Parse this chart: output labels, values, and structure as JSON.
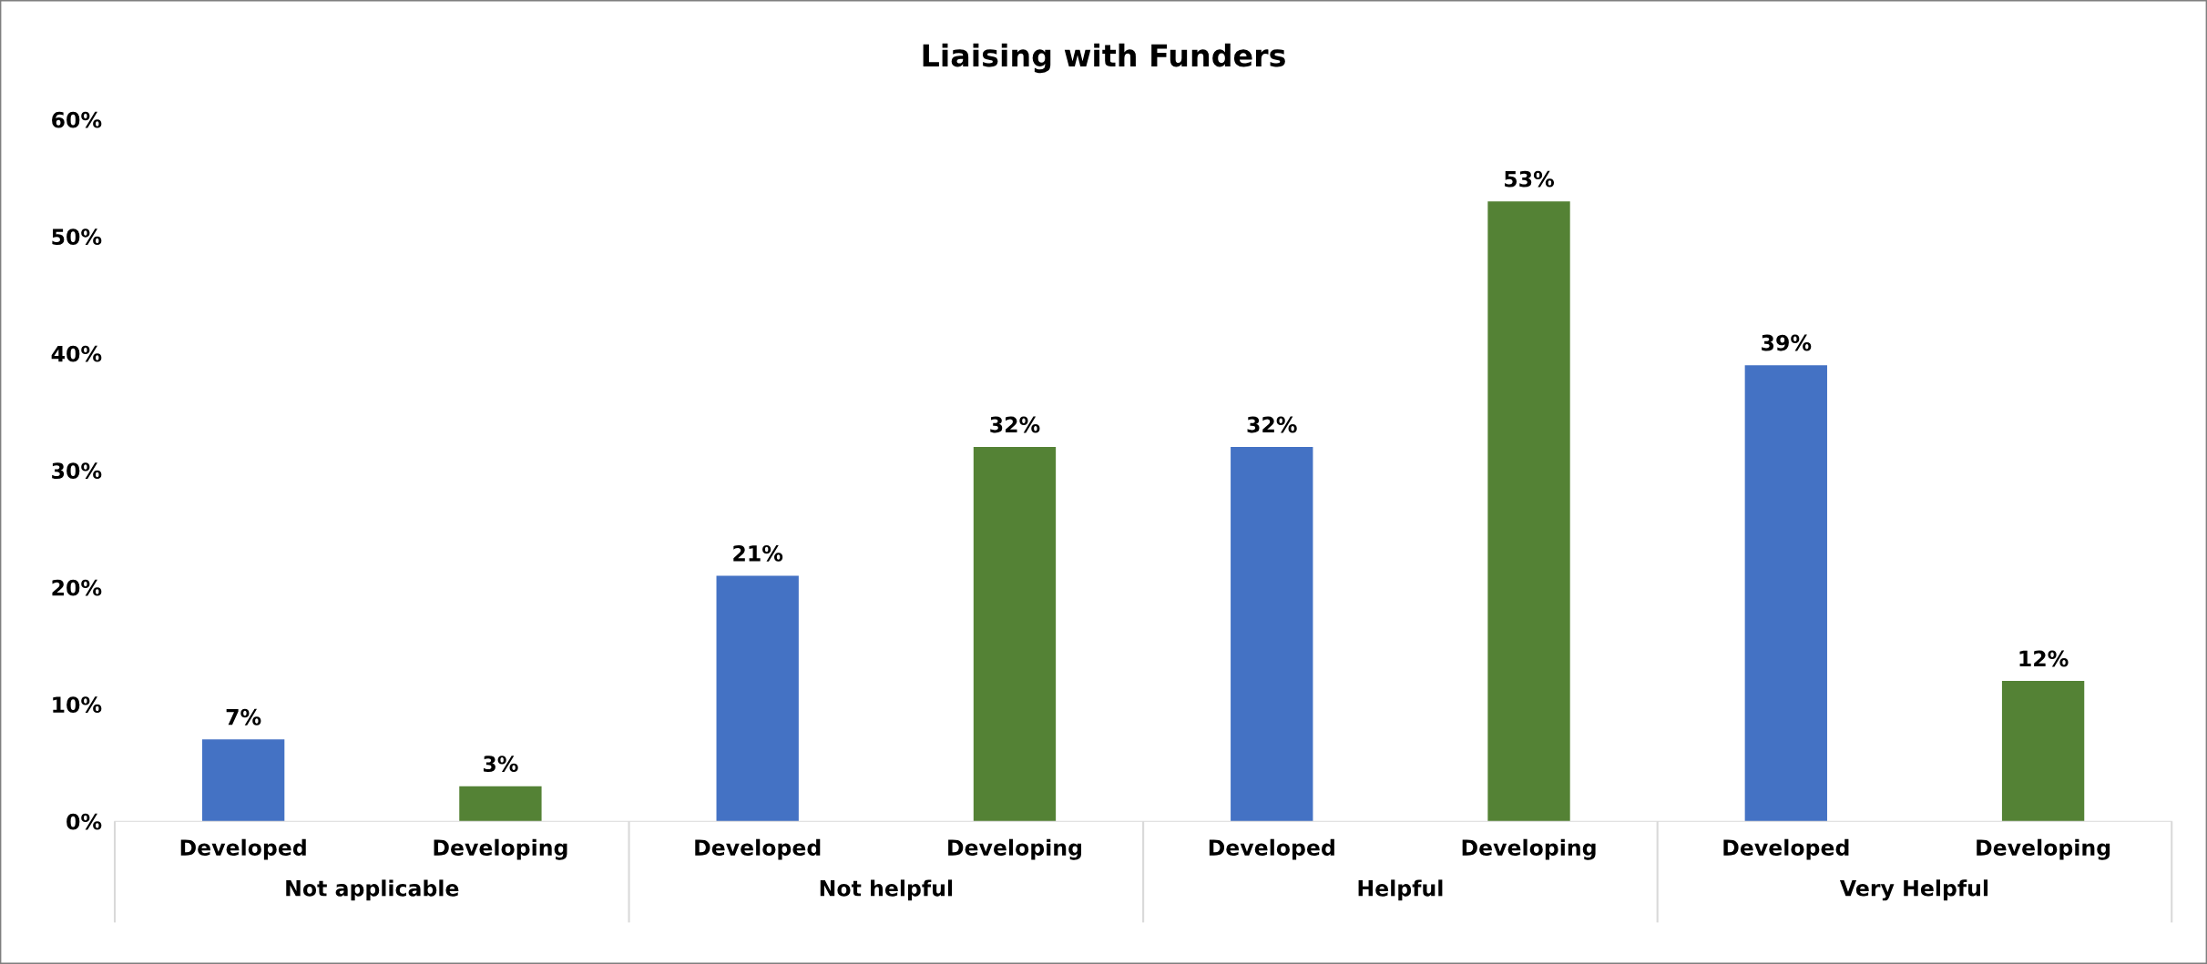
{
  "chart_data": {
    "type": "bar",
    "title": "Liaising with Funders",
    "categories": [
      "Developed",
      "Developing",
      "Developed",
      "Developing",
      "Developed",
      "Developing",
      "Developed",
      "Developing"
    ],
    "values": [
      7,
      3,
      21,
      32,
      32,
      53,
      39,
      12
    ],
    "colors": [
      "#4472c4",
      "#548235",
      "#4472c4",
      "#548235",
      "#4472c4",
      "#548235",
      "#4472c4",
      "#548235"
    ],
    "annotations": [
      "Not applicable",
      "Not helpful",
      "Helpful",
      "Very Helpful"
    ],
    "ylim": [
      0,
      60
    ],
    "yticks": [
      {
        "value": 0,
        "label": "0%"
      },
      {
        "value": 10,
        "label": "10%"
      },
      {
        "value": 20,
        "label": "20%"
      },
      {
        "value": 30,
        "label": "30%"
      },
      {
        "value": 40,
        "label": "40%"
      },
      {
        "value": 50,
        "label": "50%"
      },
      {
        "value": 60,
        "label": "60%"
      }
    ],
    "value_labels": [
      "7%",
      "3%",
      "21%",
      "32%",
      "32%",
      "53%",
      "39%",
      "12%"
    ],
    "grid": false,
    "legend": false
  }
}
